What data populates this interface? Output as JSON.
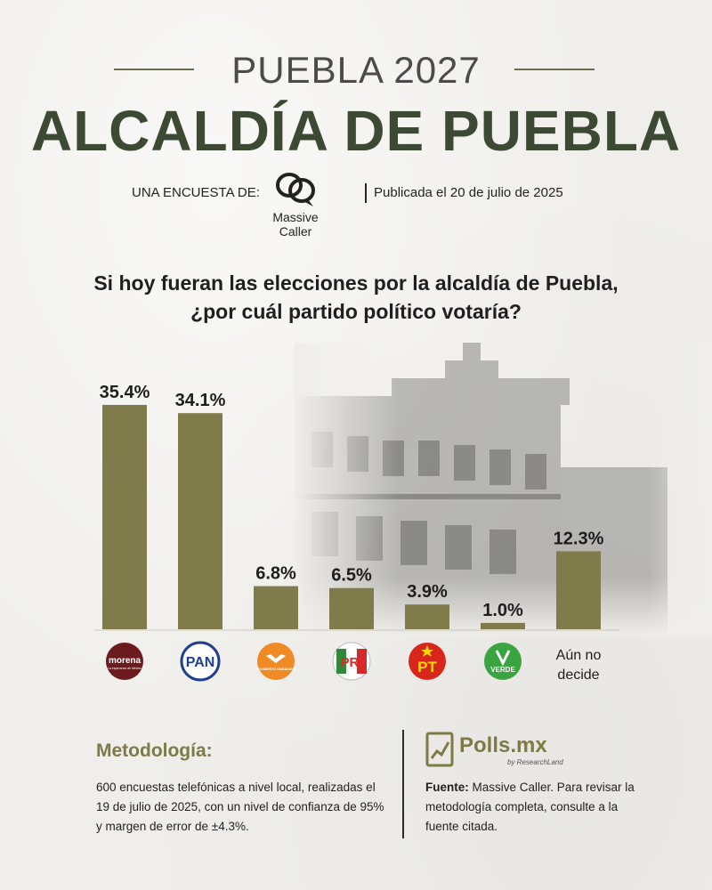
{
  "header": {
    "kicker": "PUEBLA 2027",
    "headline": "ALCALDÍA DE PUEBLA"
  },
  "source": {
    "label": "UNA ENCUESTA DE:",
    "pollster_line1": "Massive",
    "pollster_line2": "Caller",
    "published": "Publicada el 20 de julio de 2025"
  },
  "question": {
    "line1": "Si hoy fueran las elecciones por la alcaldía de Puebla,",
    "line2": "¿por cuál partido político votaría?"
  },
  "chart_data": {
    "type": "bar",
    "categories": [
      "morena",
      "PAN",
      "Movimiento Ciudadano",
      "PRI",
      "PT",
      "VERDE",
      "Aún no decide"
    ],
    "values": [
      35.4,
      34.1,
      6.8,
      6.5,
      3.9,
      1.0,
      12.3
    ],
    "value_labels": [
      "35.4%",
      "34.1%",
      "6.8%",
      "6.5%",
      "3.9%",
      "1.0%",
      "12.3%"
    ],
    "ylim": [
      0,
      40
    ],
    "bar_color": "#7f7b4b",
    "grid": false,
    "category_text": {
      "line1": "Aún no",
      "line2": "decide"
    },
    "logo_text": {
      "morena": "morena",
      "morena_sub": "La esperanza de México",
      "pan": "PAN",
      "mc_sub": "MOVIMIENTO CIUDADANO",
      "pri": "PRI",
      "pt": "PT",
      "verde": "VERDE"
    }
  },
  "methodology": {
    "title": "Metodología:",
    "body": "600 encuestas telefónicas a nivel local, realizadas el 19 de julio de 2025, con un nivel de confianza de 95% y margen de error de ±4.3%."
  },
  "credits": {
    "brand": "Polls.mx",
    "brand_sub": "by ResearchLand",
    "fuente_label": "Fuente:",
    "fuente_text": " Massive Caller. Para revisar la metodología completa, consulte a la fuente citada."
  },
  "colors": {
    "headline": "#3d4a33",
    "accent": "#7d7a45",
    "morena": "#6b1b1e",
    "pan": "#1f3f8f",
    "mc": "#f08a24",
    "pri": "#d62828",
    "pt": "#d8261c",
    "verde": "#3aa441"
  }
}
